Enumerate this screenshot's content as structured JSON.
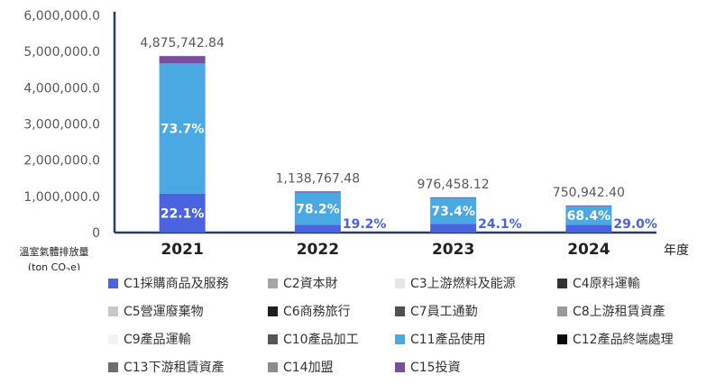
{
  "chart_data": {
    "type": "bar",
    "stacked": true,
    "categories": [
      "2021",
      "2022",
      "2023",
      "2024"
    ],
    "y_axis_title_line1": "溫室氣體排放量",
    "y_axis_title_line2_prefix": "(ton CO",
    "y_axis_title_line2_sub": "2",
    "y_axis_title_line2_suffix": "e)",
    "x_axis_title": "年度",
    "ylim": [
      0,
      6000000
    ],
    "y_ticks": [
      "0",
      "1,000,000.0",
      "2,000,000.0",
      "3,000,000.0",
      "4,000,000.0",
      "5,000,000.0",
      "6,000,000.0"
    ],
    "y_tick_values": [
      0,
      1000000,
      2000000,
      3000000,
      4000000,
      5000000,
      6000000
    ],
    "totals": [
      4875742.84,
      1138767.48,
      976458.12,
      750942.4
    ],
    "total_labels": [
      "4,875,742.84",
      "1,138,767.48",
      "976,458.12",
      "750,942.40"
    ],
    "series": [
      {
        "name": "C1採購商品及服務",
        "color": "#4a63e0",
        "values": [
          1077539.17,
          218643.36,
          235326.41,
          217773.3
        ],
        "labels": [
          "22.1%",
          "19.2%",
          "24.1%",
          "29.0%"
        ],
        "label_inside": [
          true,
          false,
          false,
          false
        ]
      },
      {
        "name": "C11產品使用",
        "color": "#4aa8e2",
        "values": [
          3593422.47,
          890516.17,
          716720.26,
          513644.6
        ],
        "labels": [
          "73.7%",
          "78.2%",
          "73.4%",
          "68.4%"
        ],
        "label_inside": [
          true,
          true,
          true,
          true
        ]
      },
      {
        "name": "C15投資",
        "color": "#7a4e9c",
        "values": [
          204781.2,
          29607.95,
          24411.45,
          19524.5
        ]
      }
    ],
    "legend": [
      {
        "name": "C1採購商品及服務",
        "color": "#4a63e0"
      },
      {
        "name": "C2資本財",
        "color": "#a6a6a6"
      },
      {
        "name": "C3上游燃料及能源",
        "color": "#e6e6e6"
      },
      {
        "name": "C4原料運輸",
        "color": "#333333"
      },
      {
        "name": "C5營運廢棄物",
        "color": "#c8c8c8"
      },
      {
        "name": "C6商務旅行",
        "color": "#1e1e1e"
      },
      {
        "name": "C7員工通勤",
        "color": "#4f4f4f"
      },
      {
        "name": "C8上游租賃資產",
        "color": "#9a9a9a"
      },
      {
        "name": "C9產品運輸",
        "color": "#f2f2f2"
      },
      {
        "name": "C10產品加工",
        "color": "#555555"
      },
      {
        "name": "C11產品使用",
        "color": "#4aa8e2"
      },
      {
        "name": "C12產品終端處理",
        "color": "#0a0a0a"
      },
      {
        "name": "C13下游租賃資產",
        "color": "#6e6e6e"
      },
      {
        "name": "C14加盟",
        "color": "#8c8c8c"
      },
      {
        "name": "C15投資",
        "color": "#7a4e9c"
      }
    ],
    "grid": false,
    "legend_position": "bottom"
  }
}
